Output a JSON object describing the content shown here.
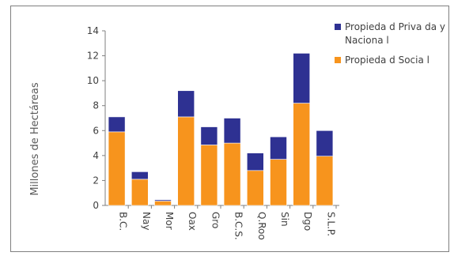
{
  "chart_data": {
    "type": "bar",
    "stacked": true,
    "title": "",
    "xlabel": "",
    "ylabel": "Millones de Hectáreas",
    "ylim": [
      0,
      14
    ],
    "yticks": [
      0,
      2,
      4,
      6,
      8,
      10,
      12,
      14
    ],
    "categories": [
      "B.C.",
      "Nay",
      "Mor",
      "Oax",
      "Gro",
      "B.C.S.",
      "Q.Roo",
      "Sin",
      "Dgo",
      "S.L.P."
    ],
    "series": [
      {
        "name": "Propiedad Social",
        "color": "#F7941D",
        "values": [
          5.9,
          2.1,
          0.35,
          7.1,
          4.85,
          5.0,
          2.8,
          3.7,
          8.2,
          3.95
        ]
      },
      {
        "name": "Propiedad Privada y Nacional",
        "color": "#2E3192",
        "values": [
          1.2,
          0.6,
          0.1,
          2.1,
          1.45,
          2.0,
          1.4,
          1.8,
          4.0,
          2.05
        ]
      }
    ],
    "legend": {
      "position": "top-right",
      "entries": [
        {
          "series": 1,
          "lines": [
            "Propieda d Priva da y",
            "Naciona l"
          ]
        },
        {
          "series": 0,
          "lines": [
            "Propieda d Socia l"
          ]
        }
      ]
    },
    "grid": false
  }
}
